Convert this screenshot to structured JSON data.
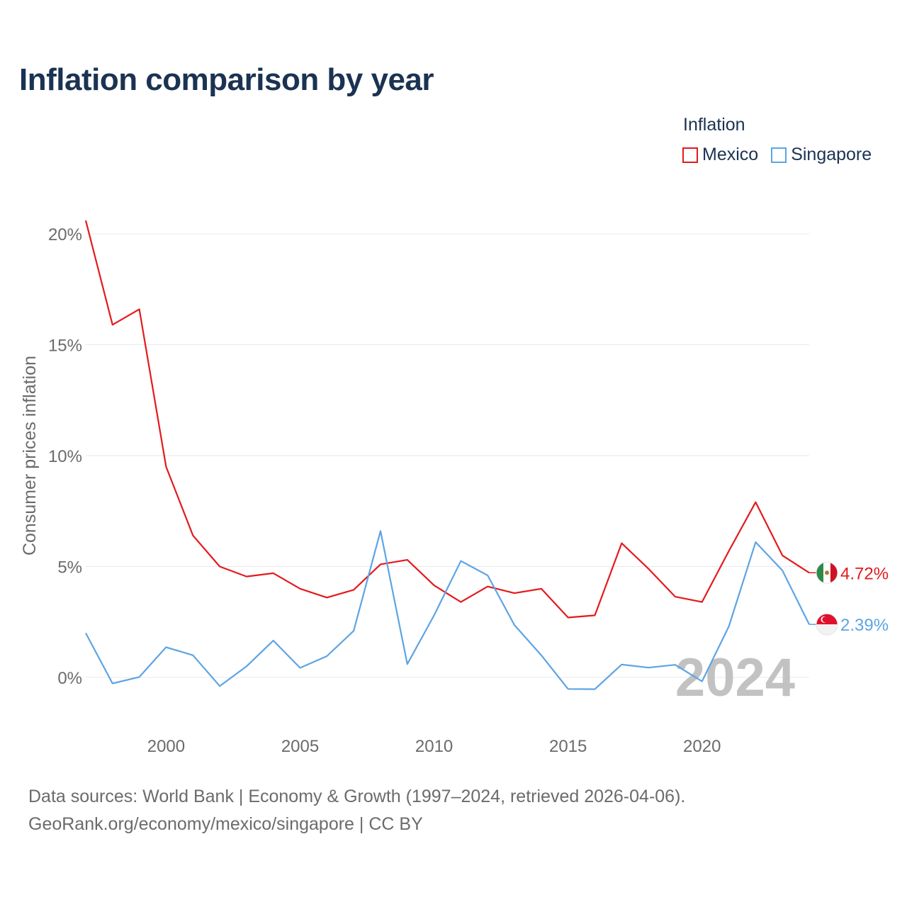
{
  "title": "Inflation comparison by year",
  "legend": {
    "title": "Inflation",
    "items": [
      {
        "name": "Mexico",
        "color": "#e31a1c"
      },
      {
        "name": "Singapore",
        "color": "#5da4e3"
      }
    ]
  },
  "source": {
    "line1": "Data sources: World Bank | Economy & Growth (1997–2024, retrieved 2026-04-06).",
    "line2": "GeoRank.org/economy/mexico/singapore | CC BY"
  },
  "chart_data": {
    "type": "line",
    "title": "Inflation comparison by year",
    "ylabel": "Consumer prices inflation",
    "xlabel": "",
    "xlim": [
      1997,
      2024
    ],
    "ylim": [
      -2.2,
      21
    ],
    "yticks": [
      0,
      5,
      10,
      15,
      20
    ],
    "ytick_labels": [
      "0%",
      "5%",
      "10%",
      "15%",
      "20%"
    ],
    "xticks": [
      2000,
      2005,
      2010,
      2015,
      2020
    ],
    "xtick_labels": [
      "2000",
      "2005",
      "2010",
      "2015",
      "2020"
    ],
    "grid": true,
    "year_watermark": "2024",
    "x": [
      1997,
      1998,
      1999,
      2000,
      2001,
      2002,
      2003,
      2004,
      2005,
      2006,
      2007,
      2008,
      2009,
      2010,
      2011,
      2012,
      2013,
      2014,
      2015,
      2016,
      2017,
      2018,
      2019,
      2020,
      2021,
      2022,
      2023,
      2024
    ],
    "series": [
      {
        "name": "Mexico",
        "color": "#e31a1c",
        "end_label": "4.72%",
        "values": [
          20.6,
          15.9,
          16.6,
          9.5,
          6.4,
          5.0,
          4.55,
          4.7,
          4.0,
          3.6,
          3.95,
          5.1,
          5.3,
          4.15,
          3.4,
          4.1,
          3.8,
          4.0,
          2.7,
          2.8,
          6.05,
          4.9,
          3.64,
          3.4,
          5.7,
          7.9,
          5.5,
          4.72
        ]
      },
      {
        "name": "Singapore",
        "color": "#5da4e3",
        "end_label": "2.39%",
        "values": [
          2.0,
          -0.27,
          0.02,
          1.36,
          1.0,
          -0.39,
          0.5,
          1.66,
          0.43,
          0.96,
          2.1,
          6.6,
          0.6,
          2.8,
          5.25,
          4.6,
          2.36,
          1.0,
          -0.52,
          -0.53,
          0.58,
          0.44,
          0.57,
          -0.18,
          2.3,
          6.1,
          4.82,
          2.39
        ]
      }
    ]
  }
}
